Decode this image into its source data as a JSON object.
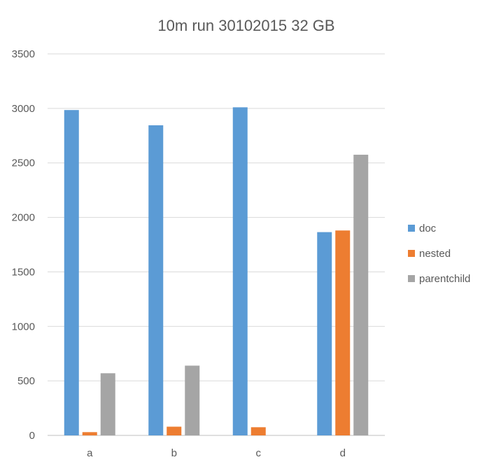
{
  "chart_data": {
    "type": "bar",
    "title": "10m run 30102015 32 GB",
    "xlabel": "",
    "ylabel": "",
    "categories": [
      "a",
      "b",
      "c",
      "d"
    ],
    "series": [
      {
        "name": "doc",
        "color": "#5B9BD5",
        "values": [
          2985,
          2845,
          3010,
          1865
        ]
      },
      {
        "name": "nested",
        "color": "#ED7D31",
        "values": [
          30,
          80,
          75,
          1880
        ]
      },
      {
        "name": "parentchild",
        "color": "#A5A5A5",
        "values": [
          570,
          640,
          0,
          2575
        ]
      }
    ],
    "ylim": [
      0,
      3500
    ],
    "yticks": [
      0,
      500,
      1000,
      1500,
      2000,
      2500,
      3000,
      3500
    ],
    "grid": true,
    "legend": "right"
  }
}
